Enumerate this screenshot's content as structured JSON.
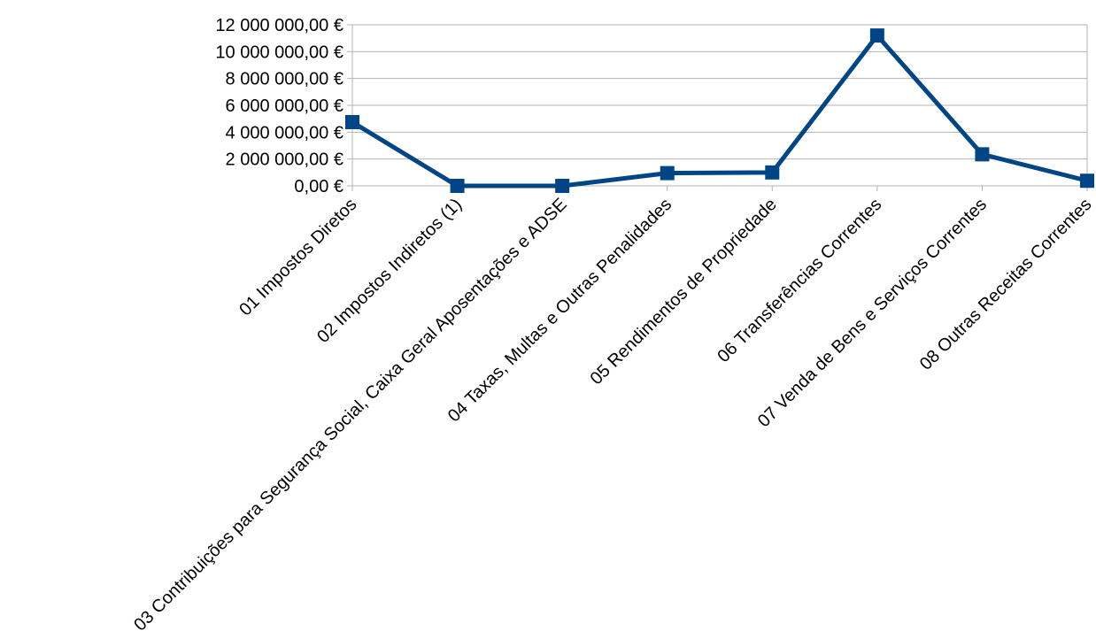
{
  "chart_data": {
    "type": "line",
    "title": "",
    "xlabel": "",
    "ylabel": "",
    "categories": [
      "01 Impostos Diretos",
      "02 Impostos Indiretos (1)",
      "03 Contribuições para Segurança Social, Caixa Geral Aposentações e ADSE",
      "04 Taxas, Multas e Outras Penalidades",
      "05 Rendimentos de Propriedade",
      "06 Transferências Correntes",
      "07 Venda de Bens e Serviços Correntes",
      "08 Outras Receitas Correntes"
    ],
    "series": [
      {
        "values": [
          4750000,
          0,
          0,
          950000,
          1000000,
          11200000,
          2350000,
          380000
        ]
      }
    ],
    "ylim": [
      0,
      12000000
    ],
    "y_ticks": [
      0,
      2000000,
      4000000,
      6000000,
      8000000,
      10000000,
      12000000
    ],
    "y_tick_labels": [
      "0,00 €",
      "2 000 000,00 €",
      "4 000 000,00 €",
      "6 000 000,00 €",
      "8 000 000,00 €",
      "10 000 000,00 €",
      "12 000 000,00 €"
    ],
    "grid": true,
    "legend": "none",
    "series_color": "#004586"
  }
}
